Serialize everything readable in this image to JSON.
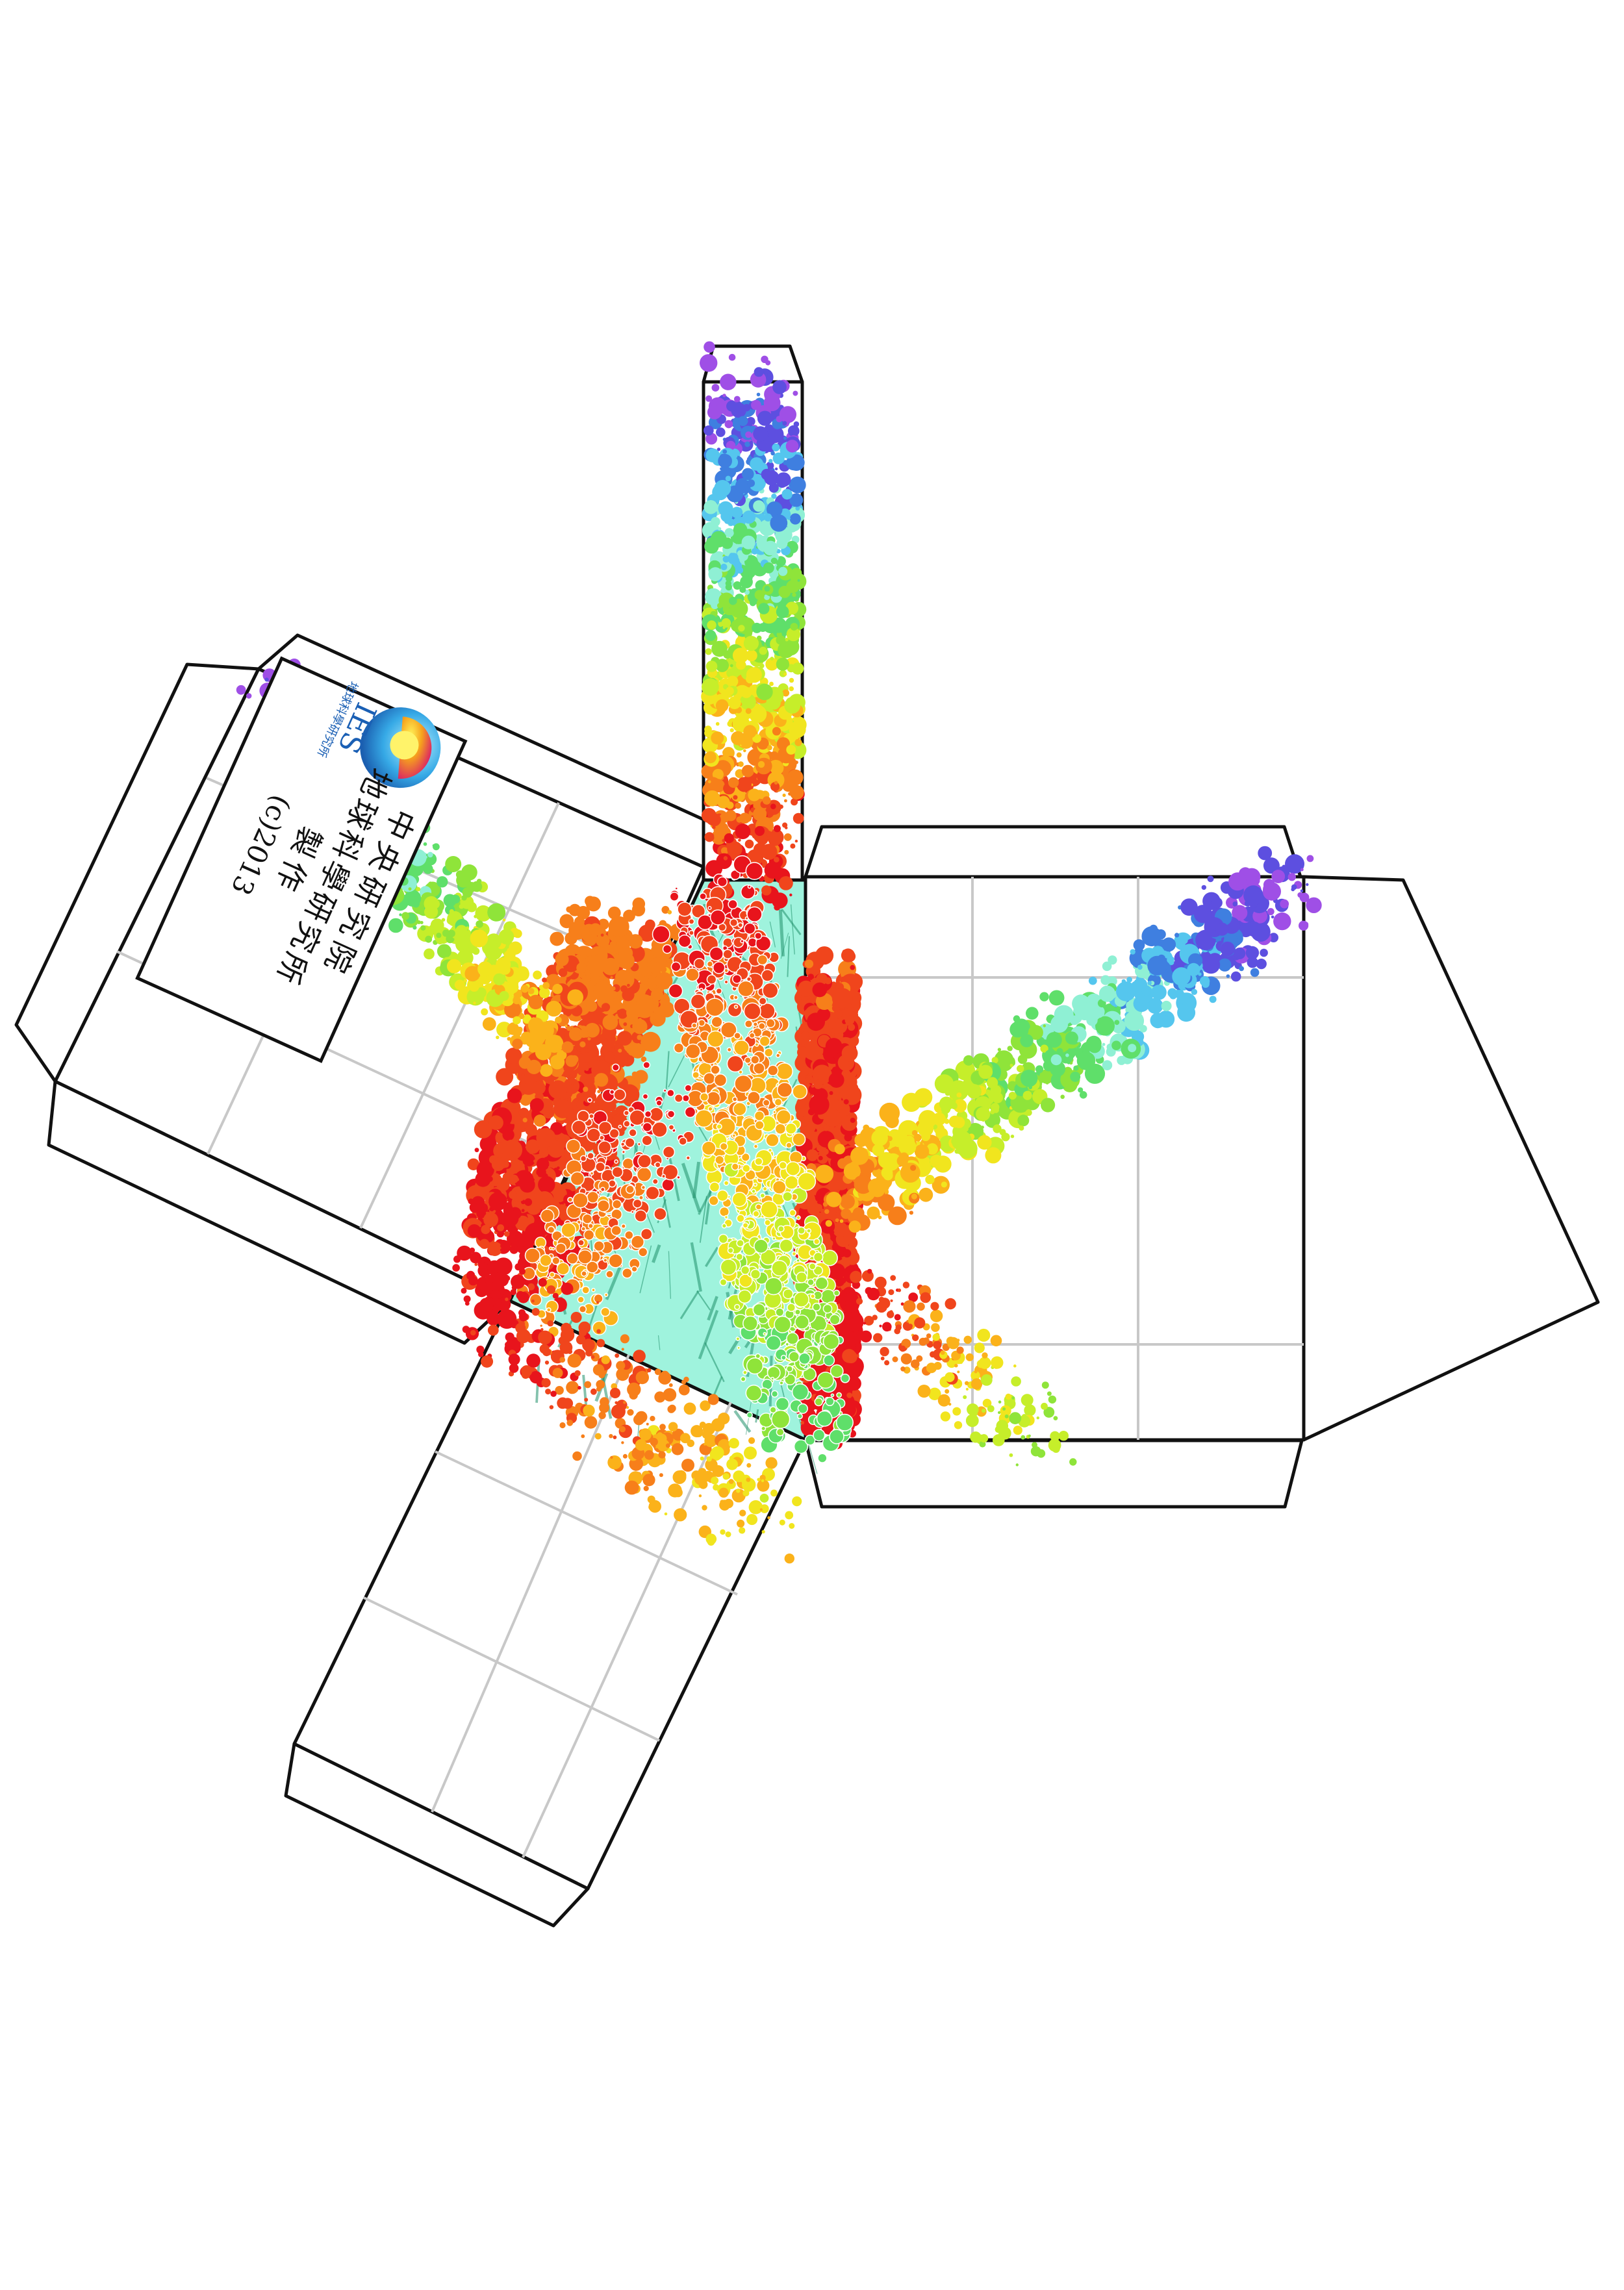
{
  "logo": {
    "acronym": "IES",
    "org_small": "地球科學研究所",
    "line1": "中央研究院",
    "line2": "地球科學研究所",
    "line3": "製作",
    "copyright": "(c)2013"
  },
  "colors": {
    "seafloor": "#9ff3dd",
    "seafloor_relief": "#1f8f6a",
    "grid": "#c8c8c8",
    "outline": "#111111",
    "logo_text": "#1a5fb4"
  },
  "depth_palette": [
    "#e8141c",
    "#f0451c",
    "#f77f1a",
    "#fbb21a",
    "#f1e51e",
    "#c6ee2a",
    "#8fe43a",
    "#5fdf6a",
    "#8ff0d4",
    "#55c6ee",
    "#3f7fe0",
    "#5d4fe0",
    "#9f4fe6"
  ]
}
